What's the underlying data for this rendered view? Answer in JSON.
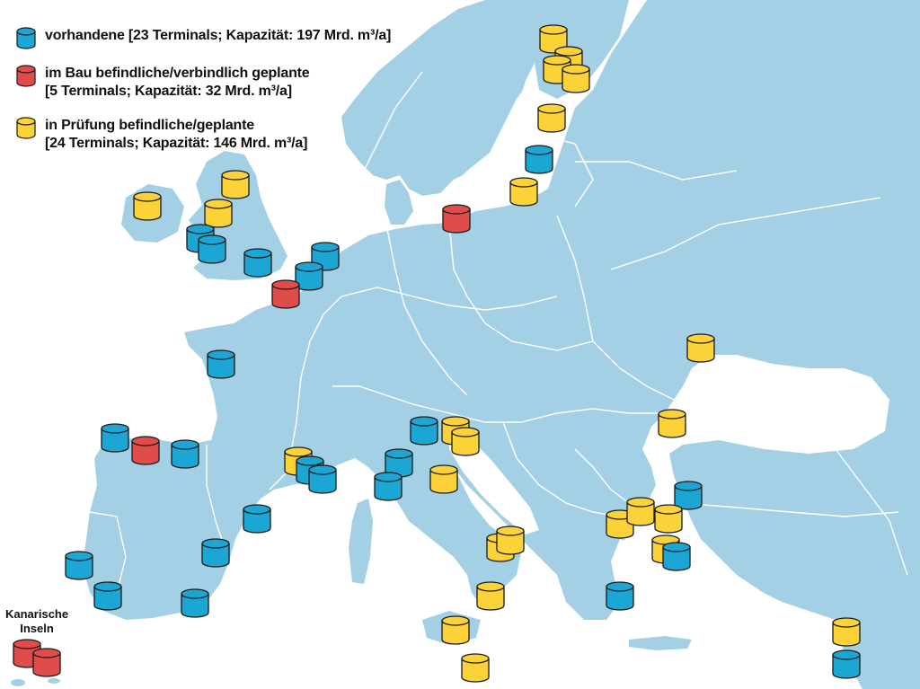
{
  "colors": {
    "sea": "#ffffff",
    "land": "#a3d0e4",
    "border": "#ffffff",
    "existing": "#1ca6d3",
    "construction": "#e04c4a",
    "planned": "#fbd238",
    "outline": "#1a1a1a"
  },
  "legend": {
    "existing": {
      "icon": "blue-cylinder-icon",
      "line1": "vorhandene [23 Terminals; Kapazität: 197 Mrd. m³/a]"
    },
    "construction": {
      "icon": "red-cylinder-icon",
      "line1": "im Bau befindliche/verbindlich geplante",
      "line2": "[5 Terminals; Kapazität: 32 Mrd. m³/a]"
    },
    "planned": {
      "icon": "yellow-cylinder-icon",
      "line1": "in Prüfung befindliche/geplante",
      "line2": "[24 Terminals; Kapazität: 146 Mrd. m³/a]"
    }
  },
  "inset_label": {
    "line1": "Kanarische",
    "line2": "Inseln"
  },
  "terminal_counts": {
    "existing": 23,
    "construction": 5,
    "planned": 24
  },
  "capacity_bcm_per_year": {
    "existing": 197,
    "construction": 32,
    "planned": 146
  }
}
